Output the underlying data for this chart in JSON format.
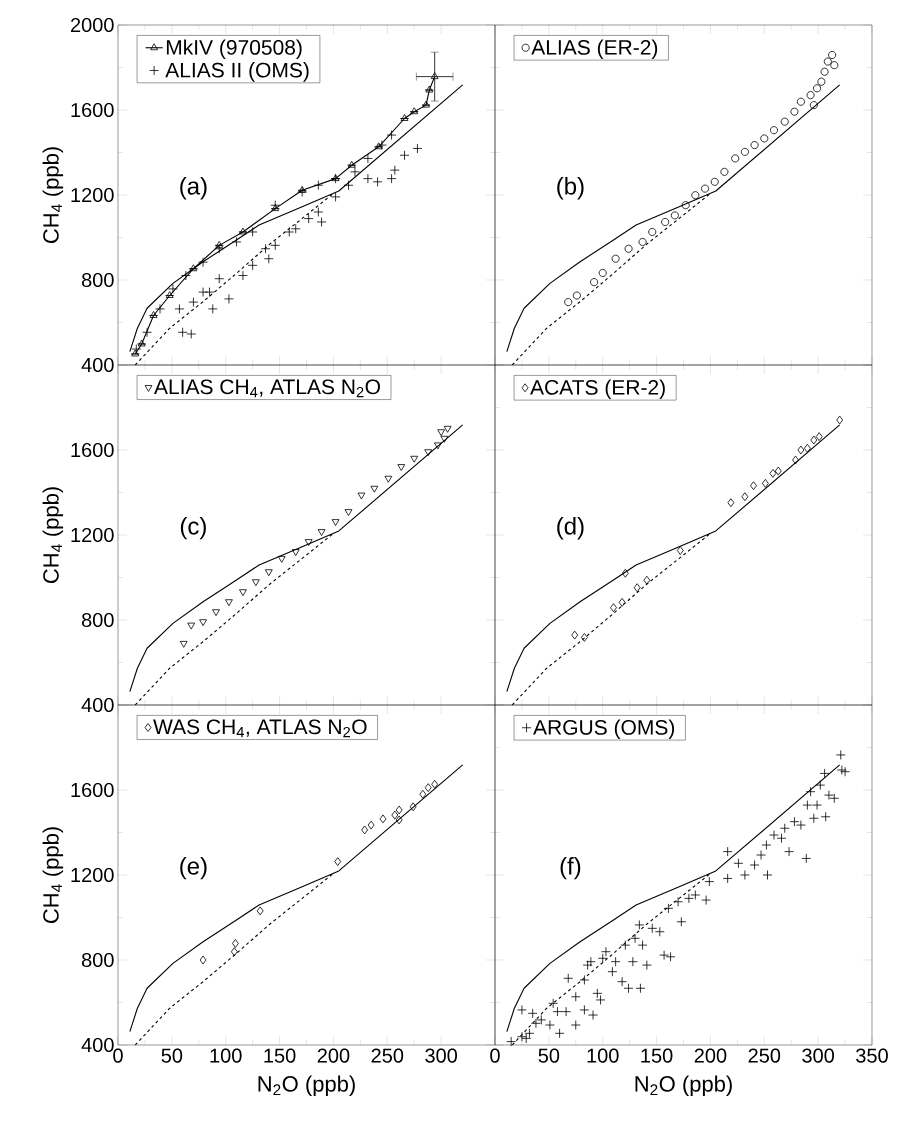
{
  "chart_data": [
    {
      "type": "scatter",
      "ylabel": "CH$_{4}$ (ppb)",
      "annotations": [
        "(a)"
      ],
      "legend": "top left",
      "tick_labels": "y",
      "xlim": [
        0,
        350
      ],
      "ylim": [
        400,
        2000
      ],
      "xticks": [
        0,
        50,
        100,
        150,
        200,
        250,
        300
      ],
      "yticks": [
        400,
        800,
        1200,
        1600,
        2000
      ],
      "series": [
        {
          "name": "MkIV (970508)",
          "type": "line",
          "marker": "triangle",
          "color": "#000000",
          "x": [
            16,
            22,
            33,
            48,
            70,
            94,
            116,
            146,
            171,
            202,
            217,
            242,
            266,
            275,
            286,
            289,
            294
          ],
          "values": [
            452,
            499,
            633,
            727,
            853,
            963,
            1026,
            1136,
            1222,
            1277,
            1340,
            1427,
            1560,
            1592,
            1623,
            1694,
            1757
          ],
          "errors": [
            null,
            null,
            null,
            null,
            null,
            null,
            null,
            null,
            null,
            null,
            null,
            null,
            null,
            null,
            null,
            null,
            115
          ],
          "xerrors": [
            null,
            null,
            null,
            null,
            null,
            null,
            null,
            null,
            null,
            null,
            null,
            null,
            null,
            null,
            null,
            null,
            17
          ]
        },
        {
          "name": "ALIAS II (OMS)",
          "marker": "cross",
          "color": "#000000",
          "x": [
            17,
            27,
            39,
            51,
            63,
            79,
            94,
            110,
            125,
            146,
            171,
            186,
            202,
            220,
            232,
            245,
            254,
            60,
            68,
            57,
            70,
            79,
            85,
            103,
            94,
            116,
            125,
            140,
            146,
            137,
            159,
            165,
            177,
            189,
            186,
            202,
            214,
            232,
            241,
            254,
            257,
            266,
            278,
            88
          ],
          "values": [
            475,
            554,
            664,
            758,
            821,
            884,
            947,
            979,
            1026,
            1152,
            1214,
            1246,
            1277,
            1309,
            1372,
            1435,
            1482,
            554,
            546,
            664,
            696,
            743,
            743,
            711,
            806,
            821,
            869,
            900,
            963,
            947,
            1026,
            1041,
            1089,
            1073,
            1120,
            1191,
            1246,
            1277,
            1262,
            1277,
            1317,
            1387,
            1419,
            664
          ]
        },
        {
          "type": "line",
          "line_style": "solid",
          "marker": "none",
          "color": "#000000",
          "x": [
            11,
            18,
            27,
            51,
            79,
            110,
            131,
            171,
            205,
            320
          ],
          "values": [
            463,
            573,
            667,
            784,
            886,
            988,
            1059,
            1145,
            1219,
            1718
          ]
        },
        {
          "type": "line",
          "line_style": "dashed",
          "marker": "none",
          "color": "#000000",
          "x": [
            16,
            48,
            79,
            110,
            140,
            171,
            199
          ],
          "values": [
            400,
            573,
            698,
            831,
            965,
            1090,
            1203
          ]
        }
      ]
    },
    {
      "type": "scatter",
      "annotations": [
        "(b)"
      ],
      "legend": "top left",
      "tick_labels": false,
      "xlim": [
        0,
        350
      ],
      "ylim": [
        400,
        2000
      ],
      "xticks": [
        0,
        50,
        100,
        150,
        200,
        250,
        300,
        350
      ],
      "yticks": [
        400,
        800,
        1200,
        1600,
        2000
      ],
      "series": [
        {
          "name": "ALIAS (ER-2)",
          "marker": "circle",
          "color": "#000000",
          "x": [
            68,
            76,
            92,
            100,
            112,
            124,
            137,
            146,
            158,
            167,
            177,
            186,
            195,
            204,
            213,
            223,
            232,
            241,
            250,
            259,
            269,
            278,
            284,
            293,
            299,
            303,
            306,
            309,
            313,
            315,
            296
          ],
          "values": [
            696,
            727,
            790,
            833,
            900,
            947,
            979,
            1026,
            1073,
            1104,
            1152,
            1199,
            1230,
            1262,
            1309,
            1372,
            1403,
            1435,
            1466,
            1505,
            1545,
            1592,
            1639,
            1670,
            1702,
            1733,
            1780,
            1828,
            1859,
            1811,
            1623
          ]
        },
        {
          "type": "line",
          "line_style": "solid",
          "marker": "none",
          "color": "#000000",
          "x": [
            11,
            18,
            27,
            51,
            79,
            110,
            131,
            171,
            205,
            320
          ],
          "values": [
            463,
            573,
            667,
            784,
            886,
            988,
            1059,
            1145,
            1219,
            1718
          ]
        },
        {
          "type": "line",
          "line_style": "dashed",
          "marker": "none",
          "color": "#000000",
          "x": [
            16,
            48,
            79,
            110,
            140,
            171,
            199
          ],
          "values": [
            400,
            573,
            698,
            831,
            965,
            1090,
            1203
          ]
        }
      ]
    },
    {
      "type": "scatter",
      "ylabel": "CH$_{4}$ (ppb)",
      "annotations": [
        "(c)"
      ],
      "legend": "top left",
      "tick_labels": "y",
      "xlim": [
        0,
        350
      ],
      "ylim": [
        400,
        2000
      ],
      "xticks": [
        0,
        50,
        100,
        150,
        200,
        250,
        300
      ],
      "yticks": [
        400,
        800,
        1200,
        1600
      ],
      "series": [
        {
          "name": "ALIAS CH$_{4}$, ATLAS N$_{2}$O",
          "marker": "triangle",
          "color": "#000000",
          "x": [
            61,
            68,
            79,
            91,
            103,
            116,
            128,
            140,
            152,
            165,
            177,
            189,
            202,
            214,
            226,
            238,
            251,
            263,
            275,
            288,
            297,
            300,
            306,
            303
          ],
          "values": [
            690,
            776,
            792,
            839,
            886,
            933,
            980,
            1027,
            1090,
            1122,
            1169,
            1216,
            1263,
            1310,
            1388,
            1420,
            1467,
            1522,
            1561,
            1592,
            1624,
            1686,
            1702,
            1655
          ]
        },
        {
          "type": "line",
          "line_style": "solid",
          "marker": "none",
          "color": "#000000",
          "x": [
            11,
            18,
            27,
            51,
            79,
            110,
            131,
            171,
            205,
            320
          ],
          "values": [
            463,
            573,
            667,
            784,
            886,
            988,
            1059,
            1145,
            1219,
            1718
          ]
        },
        {
          "type": "line",
          "line_style": "dashed",
          "marker": "none",
          "color": "#000000",
          "x": [
            16,
            48,
            79,
            110,
            140,
            171,
            199
          ],
          "values": [
            400,
            573,
            698,
            831,
            965,
            1090,
            1203
          ]
        }
      ]
    },
    {
      "type": "scatter",
      "annotations": [
        "(d)"
      ],
      "legend": "top left",
      "tick_labels": false,
      "xlim": [
        0,
        350
      ],
      "ylim": [
        400,
        2000
      ],
      "xticks": [
        0,
        50,
        100,
        150,
        200,
        250,
        300,
        350
      ],
      "yticks": [
        400,
        800,
        1200,
        1600,
        2000
      ],
      "series": [
        {
          "name": "ACATS (ER-2)",
          "marker": "diamond",
          "color": "#000000",
          "x": [
            74,
            83,
            110,
            118,
            132,
            141,
            121,
            172,
            219,
            232,
            240,
            251,
            258,
            263,
            279,
            284,
            290,
            296,
            301,
            320
          ],
          "values": [
            729,
            718,
            858,
            883,
            952,
            987,
            1020,
            1127,
            1352,
            1380,
            1432,
            1443,
            1490,
            1501,
            1553,
            1600,
            1608,
            1647,
            1663,
            1741
          ]
        },
        {
          "type": "line",
          "line_style": "solid",
          "marker": "none",
          "color": "#000000",
          "x": [
            11,
            18,
            27,
            51,
            79,
            110,
            131,
            171,
            205,
            320
          ],
          "values": [
            463,
            573,
            667,
            784,
            886,
            988,
            1059,
            1145,
            1219,
            1718
          ]
        },
        {
          "type": "line",
          "line_style": "dashed",
          "marker": "none",
          "color": "#000000",
          "x": [
            16,
            48,
            79,
            110,
            140,
            171,
            199
          ],
          "values": [
            400,
            573,
            698,
            831,
            965,
            1090,
            1203
          ]
        }
      ]
    },
    {
      "type": "scatter",
      "ylabel": "CH$_{4}$ (ppb)",
      "xlabel": "N$_{2}$O (ppb)",
      "annotations": [
        "(e)"
      ],
      "legend": "top left",
      "xlim": [
        0,
        350
      ],
      "ylim": [
        400,
        2000
      ],
      "xticks": [
        0,
        50,
        100,
        150,
        200,
        250,
        300
      ],
      "yticks": [
        400,
        800,
        1200,
        1600
      ],
      "series": [
        {
          "name": "WAS CH$_{4}$, ATLAS N$_{2}$O",
          "marker": "diamond",
          "color": "#000000",
          "x": [
            79,
            108,
            109,
            132,
            204,
            229,
            235,
            246,
            257,
            261,
            261,
            274,
            283,
            288,
            294
          ],
          "values": [
            800,
            839,
            878,
            1031,
            1263,
            1412,
            1435,
            1464,
            1482,
            1506,
            1459,
            1521,
            1580,
            1611,
            1627
          ]
        },
        {
          "type": "line",
          "line_style": "solid",
          "marker": "none",
          "color": "#000000",
          "x": [
            11,
            18,
            27,
            51,
            79,
            110,
            131,
            171,
            205,
            320
          ],
          "values": [
            463,
            573,
            667,
            784,
            886,
            988,
            1059,
            1145,
            1219,
            1718
          ]
        },
        {
          "type": "line",
          "line_style": "dashed",
          "marker": "none",
          "color": "#000000",
          "x": [
            16,
            48,
            79,
            110,
            140,
            171,
            199
          ],
          "values": [
            400,
            573,
            698,
            831,
            965,
            1090,
            1203
          ]
        }
      ]
    },
    {
      "type": "scatter",
      "xlabel": "N$_{2}$O (ppb)",
      "annotations": [
        "(f)"
      ],
      "legend": "top left",
      "tick_labels": "x",
      "xlim": [
        0,
        350
      ],
      "ylim": [
        400,
        2000
      ],
      "xticks": [
        0,
        50,
        100,
        150,
        200,
        250,
        300,
        350
      ],
      "yticks": [
        400,
        800,
        1200,
        1600,
        2000
      ],
      "series": [
        {
          "name": "ARGUS (OMS)",
          "marker": "cross",
          "color": "#000000",
          "x": [
            15,
            25,
            29,
            32,
            25,
            35,
            38,
            43,
            51,
            58,
            60,
            66,
            75,
            54,
            68,
            75,
            83,
            83,
            91,
            95,
            98,
            86,
            89,
            100,
            103,
            109,
            112,
            118,
            121,
            124,
            128,
            135,
            134,
            130,
            137,
            141,
            146,
            153,
            157,
            163,
            161,
            170,
            173,
            180,
            186,
            196,
            199,
            216,
            216,
            226,
            232,
            241,
            247,
            253,
            252,
            259,
            266,
            269,
            273,
            278,
            284,
            289,
            290,
            293,
            296,
            299,
            307,
            310,
            315,
            321,
            322,
            325,
            306,
            302
          ],
          "values": [
            416,
            439,
            431,
            455,
            565,
            549,
            502,
            518,
            494,
            557,
            455,
            557,
            494,
            596,
            714,
            627,
            565,
            706,
            541,
            643,
            612,
            776,
            792,
            808,
            839,
            745,
            792,
            698,
            870,
            667,
            792,
            667,
            965,
            902,
            870,
            776,
            949,
            933,
            823,
            815,
            1043,
            1074,
            980,
            1090,
            1106,
            1082,
            1169,
            1184,
            1310,
            1255,
            1200,
            1247,
            1294,
            1200,
            1341,
            1388,
            1373,
            1420,
            1310,
            1451,
            1435,
            1278,
            1529,
            1592,
            1467,
            1529,
            1474,
            1576,
            1561,
            1765,
            1694,
            1686,
            1678,
            1623
          ]
        },
        {
          "type": "line",
          "line_style": "solid",
          "marker": "none",
          "color": "#000000",
          "x": [
            11,
            18,
            27,
            51,
            79,
            110,
            131,
            171,
            205,
            320
          ],
          "values": [
            463,
            573,
            667,
            784,
            886,
            988,
            1059,
            1145,
            1219,
            1718
          ]
        },
        {
          "type": "line",
          "line_style": "dashed",
          "marker": "none",
          "color": "#000000",
          "x": [
            16,
            48,
            79,
            110,
            140,
            171,
            199
          ],
          "values": [
            400,
            573,
            698,
            831,
            965,
            1090,
            1203
          ]
        }
      ]
    }
  ]
}
